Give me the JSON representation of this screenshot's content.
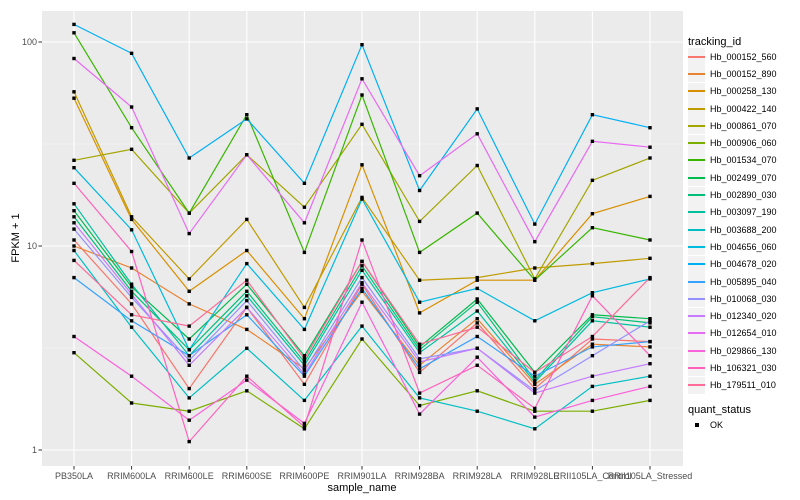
{
  "chart_data": {
    "type": "line",
    "title": "",
    "xlabel": "sample_name",
    "ylabel": "FPKM + 1",
    "y_scale": "log10",
    "ylim": [
      1,
      150
    ],
    "y_axis_ticks": [
      {
        "label": "1",
        "value": 1
      },
      {
        "label": "10",
        "value": 10
      },
      {
        "label": "100",
        "value": 100
      }
    ],
    "grid": "on",
    "panel_bg": "#EBEBEB",
    "grid_major_color": "#FFFFFF",
    "tick_label_color": "#4D4D4D",
    "point_color": "#000000",
    "point_shape": "filled-square",
    "legend_position": "right",
    "categories": [
      "PB350LA",
      "RRIM600LA",
      "RRIM600LE",
      "RRIM600SE",
      "RRIM600PE",
      "RRIM901LA",
      "RRIM928BA",
      "RRIM928LA",
      "RRIM928LE",
      "RRII105LA_Control",
      "RRII105LA_Stressed"
    ],
    "series": [
      {
        "name": "Hb_000152_560",
        "color": "#F8766D",
        "values": [
          10.7,
          5.2,
          2.0,
          5.0,
          2.1,
          6.5,
          2.4,
          4.2,
          2.0,
          3.5,
          3.4
        ]
      },
      {
        "name": "Hb_000152_890",
        "color": "#EA8331",
        "values": [
          10.0,
          7.8,
          5.2,
          3.9,
          2.5,
          6.0,
          2.6,
          4.4,
          2.1,
          3.3,
          3.2
        ]
      },
      {
        "name": "Hb_000258_130",
        "color": "#D89000",
        "values": [
          53,
          13.5,
          6.0,
          9.5,
          4.4,
          25,
          4.7,
          6.8,
          6.8,
          14.4,
          17.5
        ]
      },
      {
        "name": "Hb_000422_140",
        "color": "#C09B00",
        "values": [
          57,
          13.9,
          6.9,
          13.5,
          5.0,
          17.3,
          6.8,
          7.0,
          7.8,
          8.2,
          8.7
        ]
      },
      {
        "name": "Hb_000861_070",
        "color": "#A3A500",
        "values": [
          26.3,
          29.8,
          14.5,
          28,
          15.5,
          39.5,
          13.2,
          24.8,
          6.9,
          21,
          27
        ]
      },
      {
        "name": "Hb_000906_060",
        "color": "#7CAE00",
        "values": [
          3.0,
          1.7,
          1.55,
          1.95,
          1.27,
          3.5,
          1.65,
          1.95,
          1.55,
          1.55,
          1.75
        ]
      },
      {
        "name": "Hb_001534_070",
        "color": "#39B600",
        "values": [
          111,
          38,
          14.5,
          44,
          9.3,
          55,
          9.3,
          14.5,
          6.8,
          12.3,
          10.7
        ]
      },
      {
        "name": "Hb_002499_070",
        "color": "#00BB4E",
        "values": [
          14.9,
          6.3,
          3.5,
          6.5,
          2.9,
          8.4,
          3.2,
          5.5,
          2.4,
          4.6,
          4.4
        ]
      },
      {
        "name": "Hb_002890_030",
        "color": "#00C079",
        "values": [
          13.9,
          6.0,
          3.1,
          6.0,
          2.7,
          8.0,
          3.1,
          5.3,
          2.2,
          4.5,
          4.2
        ]
      },
      {
        "name": "Hb_003097_190",
        "color": "#00C19F",
        "values": [
          16.1,
          6.5,
          2.9,
          5.7,
          2.6,
          7.6,
          3.0,
          4.8,
          2.15,
          4.3,
          4.0
        ]
      },
      {
        "name": "Hb_003688_200",
        "color": "#00BFC4",
        "values": [
          9.5,
          4.0,
          1.8,
          3.15,
          1.75,
          4.05,
          1.8,
          1.55,
          1.27,
          2.05,
          2.3
        ]
      },
      {
        "name": "Hb_004656_060",
        "color": "#00BAE0",
        "values": [
          24.2,
          12.0,
          3.1,
          8.2,
          3.9,
          17.0,
          5.3,
          6.2,
          4.3,
          5.9,
          6.9
        ]
      },
      {
        "name": "Hb_004678_020",
        "color": "#00B0F6",
        "values": [
          122,
          88,
          27,
          42,
          20.3,
          97,
          18.7,
          47,
          12.8,
          44,
          38
        ]
      },
      {
        "name": "Hb_005895_040",
        "color": "#35A2FF",
        "values": [
          7.0,
          4.3,
          2.9,
          4.6,
          2.3,
          6.2,
          2.5,
          3.6,
          2.3,
          3.2,
          3.4
        ]
      },
      {
        "name": "Hb_010068_030",
        "color": "#9590FF",
        "values": [
          12.1,
          5.6,
          2.75,
          5.4,
          2.45,
          7.0,
          2.8,
          3.15,
          1.95,
          2.9,
          4.3
        ]
      },
      {
        "name": "Hb_012340_020",
        "color": "#C77CFF",
        "values": [
          13.0,
          5.8,
          2.6,
          5.0,
          2.35,
          6.6,
          2.7,
          3.15,
          1.9,
          2.3,
          2.65
        ]
      },
      {
        "name": "Hb_012654_010",
        "color": "#E76BF3",
        "values": [
          83,
          48,
          11.5,
          28,
          13,
          66,
          22.1,
          35.5,
          10.5,
          32.6,
          30.5
        ]
      },
      {
        "name": "Hb_029866_130",
        "color": "#FA62DB",
        "values": [
          3.6,
          2.3,
          1.4,
          2.2,
          1.35,
          5.3,
          1.5,
          2.85,
          1.45,
          1.75,
          2.05
        ]
      },
      {
        "name": "Hb_106321_030",
        "color": "#FF62BC",
        "values": [
          20.3,
          9.4,
          1.1,
          2.3,
          1.3,
          10.7,
          1.9,
          2.6,
          1.6,
          5.7,
          2.9
        ]
      },
      {
        "name": "Hb_179511_010",
        "color": "#FF6A98",
        "values": [
          8.5,
          4.6,
          4.05,
          6.8,
          2.8,
          8.4,
          3.3,
          4.0,
          2.4,
          3.6,
          7.0
        ]
      }
    ],
    "color_legend": {
      "title": "tracking_id"
    },
    "shape_legend": {
      "title": "quant_status",
      "items": [
        {
          "label": "OK",
          "marker": "black-square"
        }
      ]
    }
  }
}
